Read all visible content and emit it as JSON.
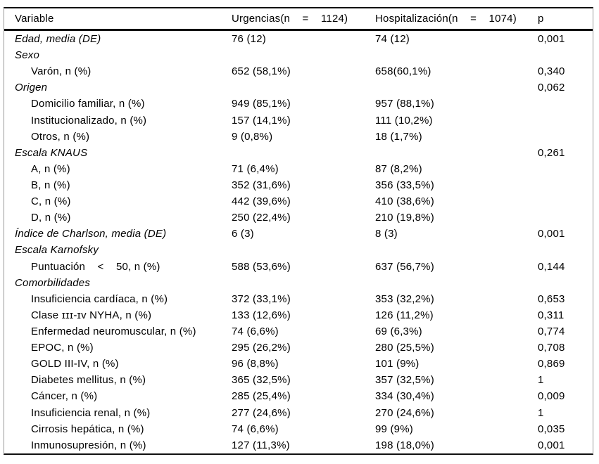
{
  "table": {
    "header": {
      "variable": "Variable",
      "urgencias": "Urgencias(n    =    1124)",
      "hospitalizacion": "Hospitalización(n    =    1074)",
      "p": "p"
    },
    "rows": [
      {
        "label": "Edad, media (DE)",
        "italic": true,
        "indent": false,
        "urgencias": "76 (12)",
        "hospitalizacion": "74 (12)",
        "p": "0,001"
      },
      {
        "label": "Sexo",
        "italic": true,
        "indent": false,
        "urgencias": "",
        "hospitalizacion": "",
        "p": ""
      },
      {
        "label": "Varón, n (%)",
        "italic": false,
        "indent": true,
        "urgencias": "652 (58,1%)",
        "hospitalizacion": "658(60,1%)",
        "p": "0,340"
      },
      {
        "label": "Origen",
        "italic": true,
        "indent": false,
        "urgencias": "",
        "hospitalizacion": "",
        "p": "0,062"
      },
      {
        "label": "Domicilio familiar, n (%)",
        "italic": false,
        "indent": true,
        "urgencias": "949 (85,1%)",
        "hospitalizacion": "957 (88,1%)",
        "p": ""
      },
      {
        "label": "Institucionalizado, n (%)",
        "italic": false,
        "indent": true,
        "urgencias": "157 (14,1%)",
        "hospitalizacion": "111 (10,2%)",
        "p": ""
      },
      {
        "label": "Otros, n (%)",
        "italic": false,
        "indent": true,
        "urgencias": "9 (0,8%)",
        "hospitalizacion": "18 (1,7%)",
        "p": ""
      },
      {
        "label": "Escala KNAUS",
        "italic": true,
        "indent": false,
        "urgencias": "",
        "hospitalizacion": "",
        "p": "0,261"
      },
      {
        "label": "A, n (%)",
        "italic": false,
        "indent": true,
        "urgencias": "71 (6,4%)",
        "hospitalizacion": "87 (8,2%)",
        "p": ""
      },
      {
        "label": "B, n (%)",
        "italic": false,
        "indent": true,
        "urgencias": "352 (31,6%)",
        "hospitalizacion": "356 (33,5%)",
        "p": ""
      },
      {
        "label": "C, n (%)",
        "italic": false,
        "indent": true,
        "urgencias": "442 (39,6%)",
        "hospitalizacion": "410 (38,6%)",
        "p": ""
      },
      {
        "label": "D, n (%)",
        "italic": false,
        "indent": true,
        "urgencias": "250 (22,4%)",
        "hospitalizacion": "210 (19,8%)",
        "p": ""
      },
      {
        "label": "Índice de Charlson, media (DE)",
        "italic": true,
        "indent": false,
        "urgencias": "6 (3)",
        "hospitalizacion": "8 (3)",
        "p": "0,001"
      },
      {
        "label": "Escala Karnofsky",
        "italic": true,
        "indent": false,
        "urgencias": "",
        "hospitalizacion": "",
        "p": ""
      },
      {
        "label": "Puntuación    <    50, n (%)",
        "italic": false,
        "indent": true,
        "urgencias": "588 (53,6%)",
        "hospitalizacion": "637 (56,7%)",
        "p": "0,144"
      },
      {
        "label": "Comorbilidades",
        "italic": true,
        "indent": false,
        "urgencias": "",
        "hospitalizacion": "",
        "p": ""
      },
      {
        "label": "Insuficiencia cardíaca, n (%)",
        "italic": false,
        "indent": true,
        "urgencias": "372 (33,1%)",
        "hospitalizacion": "353 (32,2%)",
        "p": "0,653"
      },
      {
        "label": "Clase ɪɪɪ-ɪᴠ NYHA, n (%)",
        "italic": false,
        "indent": true,
        "urgencias": "133 (12,6%)",
        "hospitalizacion": "126 (11,2%)",
        "p": "0,311"
      },
      {
        "label": "Enfermedad neuromuscular, n (%)",
        "italic": false,
        "indent": true,
        "urgencias": "74 (6,6%)",
        "hospitalizacion": "69 (6,3%)",
        "p": "0,774"
      },
      {
        "label": "EPOC, n (%)",
        "italic": false,
        "indent": true,
        "urgencias": "295 (26,2%)",
        "hospitalizacion": "280 (25,5%)",
        "p": "0,708"
      },
      {
        "label": "GOLD III-IV, n (%)",
        "italic": false,
        "indent": true,
        "urgencias": "96 (8,8%)",
        "hospitalizacion": "101 (9%)",
        "p": "0,869"
      },
      {
        "label": "Diabetes mellitus, n (%)",
        "italic": false,
        "indent": true,
        "urgencias": "365 (32,5%)",
        "hospitalizacion": "357 (32,5%)",
        "p": "1"
      },
      {
        "label": "Cáncer, n (%)",
        "italic": false,
        "indent": true,
        "urgencias": "285 (25,4%)",
        "hospitalizacion": "334 (30,4%)",
        "p": "0,009"
      },
      {
        "label": "Insuficiencia renal, n (%)",
        "italic": false,
        "indent": true,
        "urgencias": "277 (24,6%)",
        "hospitalizacion": "270 (24,6%)",
        "p": "1"
      },
      {
        "label": "Cirrosis hepática, n (%)",
        "italic": false,
        "indent": true,
        "urgencias": "74 (6,6%)",
        "hospitalizacion": "99 (9%)",
        "p": "0,035"
      },
      {
        "label": "Inmunosupresión, n (%)",
        "italic": false,
        "indent": true,
        "urgencias": "127 (11,3%)",
        "hospitalizacion": "198 (18,0%)",
        "p": "0,001"
      }
    ],
    "colors": {
      "text": "#000000",
      "rule_strong": "#101010",
      "rule_side": "#9a9a9a",
      "background": "#ffffff"
    }
  }
}
